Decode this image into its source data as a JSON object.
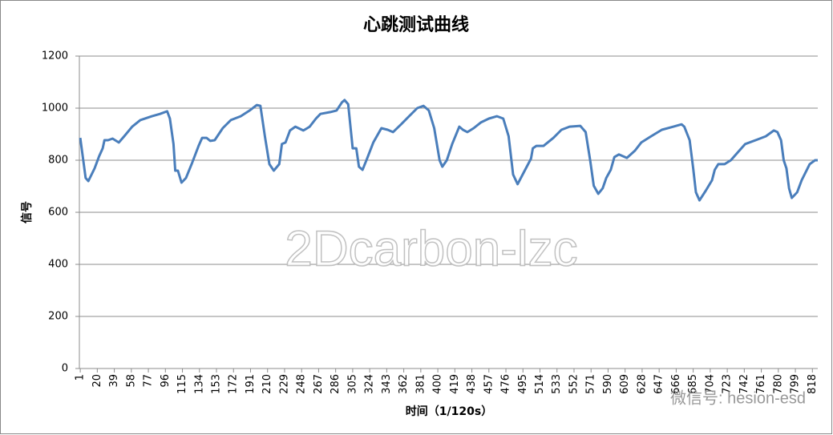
{
  "chart_data": {
    "type": "line",
    "title": "心跳测试曲线",
    "x_label": "时间（1/120s）",
    "y_label": "信号",
    "annotations": [
      "2Dcarbon-lzc",
      "微信号: hesion-esd"
    ],
    "color": "#4a7ebb",
    "grid": true,
    "xlim": [
      0,
      824
    ],
    "ylim": [
      0,
      1200
    ],
    "yticks": [
      0,
      200,
      400,
      600,
      800,
      1000,
      1200
    ],
    "xticks": [
      1,
      20,
      39,
      58,
      77,
      96,
      115,
      134,
      153,
      172,
      191,
      210,
      229,
      248,
      267,
      286,
      305,
      324,
      343,
      362,
      381,
      400,
      419,
      438,
      457,
      476,
      495,
      514,
      533,
      552,
      571,
      590,
      609,
      628,
      647,
      666,
      685,
      704,
      723,
      742,
      761,
      780,
      799,
      818
    ],
    "x": [
      1,
      7,
      10,
      17,
      22,
      26,
      28,
      32,
      37,
      44,
      50,
      59,
      68,
      81,
      90,
      98,
      101,
      105,
      107,
      110,
      114,
      119,
      126,
      133,
      137,
      142,
      146,
      151,
      160,
      169,
      180,
      190,
      198,
      202,
      207,
      212,
      217,
      223,
      226,
      230,
      235,
      241,
      250,
      257,
      264,
      269,
      280,
      287,
      293,
      296,
      300,
      305,
      309,
      312,
      316,
      321,
      328,
      337,
      344,
      350,
      359,
      368,
      377,
      384,
      390,
      396,
      402,
      405,
      410,
      416,
      424,
      428,
      433,
      440,
      448,
      457,
      466,
      473,
      479,
      484,
      489,
      496,
      504,
      506,
      510,
      518,
      529,
      538,
      547,
      559,
      565,
      570,
      574,
      579,
      584,
      588,
      593,
      597,
      602,
      611,
      620,
      627,
      638,
      650,
      663,
      672,
      675,
      681,
      685,
      688,
      692,
      699,
      706,
      709,
      713,
      720,
      727,
      735,
      743,
      757,
      766,
      775,
      779,
      783,
      786,
      789,
      792,
      795,
      801,
      806,
      815,
      821,
      824
    ],
    "values": [
      886,
      732,
      720,
      769,
      815,
      846,
      877,
      877,
      883,
      868,
      892,
      929,
      954,
      969,
      978,
      988,
      960,
      862,
      760,
      760,
      714,
      732,
      791,
      855,
      886,
      886,
      874,
      877,
      923,
      954,
      969,
      991,
      1012,
      1009,
      892,
      785,
      760,
      785,
      862,
      868,
      914,
      929,
      914,
      929,
      960,
      978,
      985,
      991,
      1022,
      1031,
      1015,
      846,
      846,
      775,
      763,
      806,
      868,
      923,
      917,
      908,
      938,
      969,
      1000,
      1009,
      991,
      923,
      800,
      775,
      800,
      862,
      929,
      917,
      908,
      923,
      945,
      960,
      969,
      960,
      892,
      745,
      708,
      754,
      806,
      846,
      855,
      855,
      886,
      917,
      929,
      932,
      908,
      800,
      702,
      671,
      692,
      732,
      763,
      812,
      822,
      809,
      837,
      868,
      892,
      917,
      929,
      938,
      929,
      877,
      769,
      677,
      646,
      683,
      723,
      763,
      785,
      785,
      800,
      831,
      862,
      880,
      892,
      914,
      908,
      877,
      800,
      769,
      692,
      655,
      677,
      723,
      785,
      800,
      800
    ]
  }
}
